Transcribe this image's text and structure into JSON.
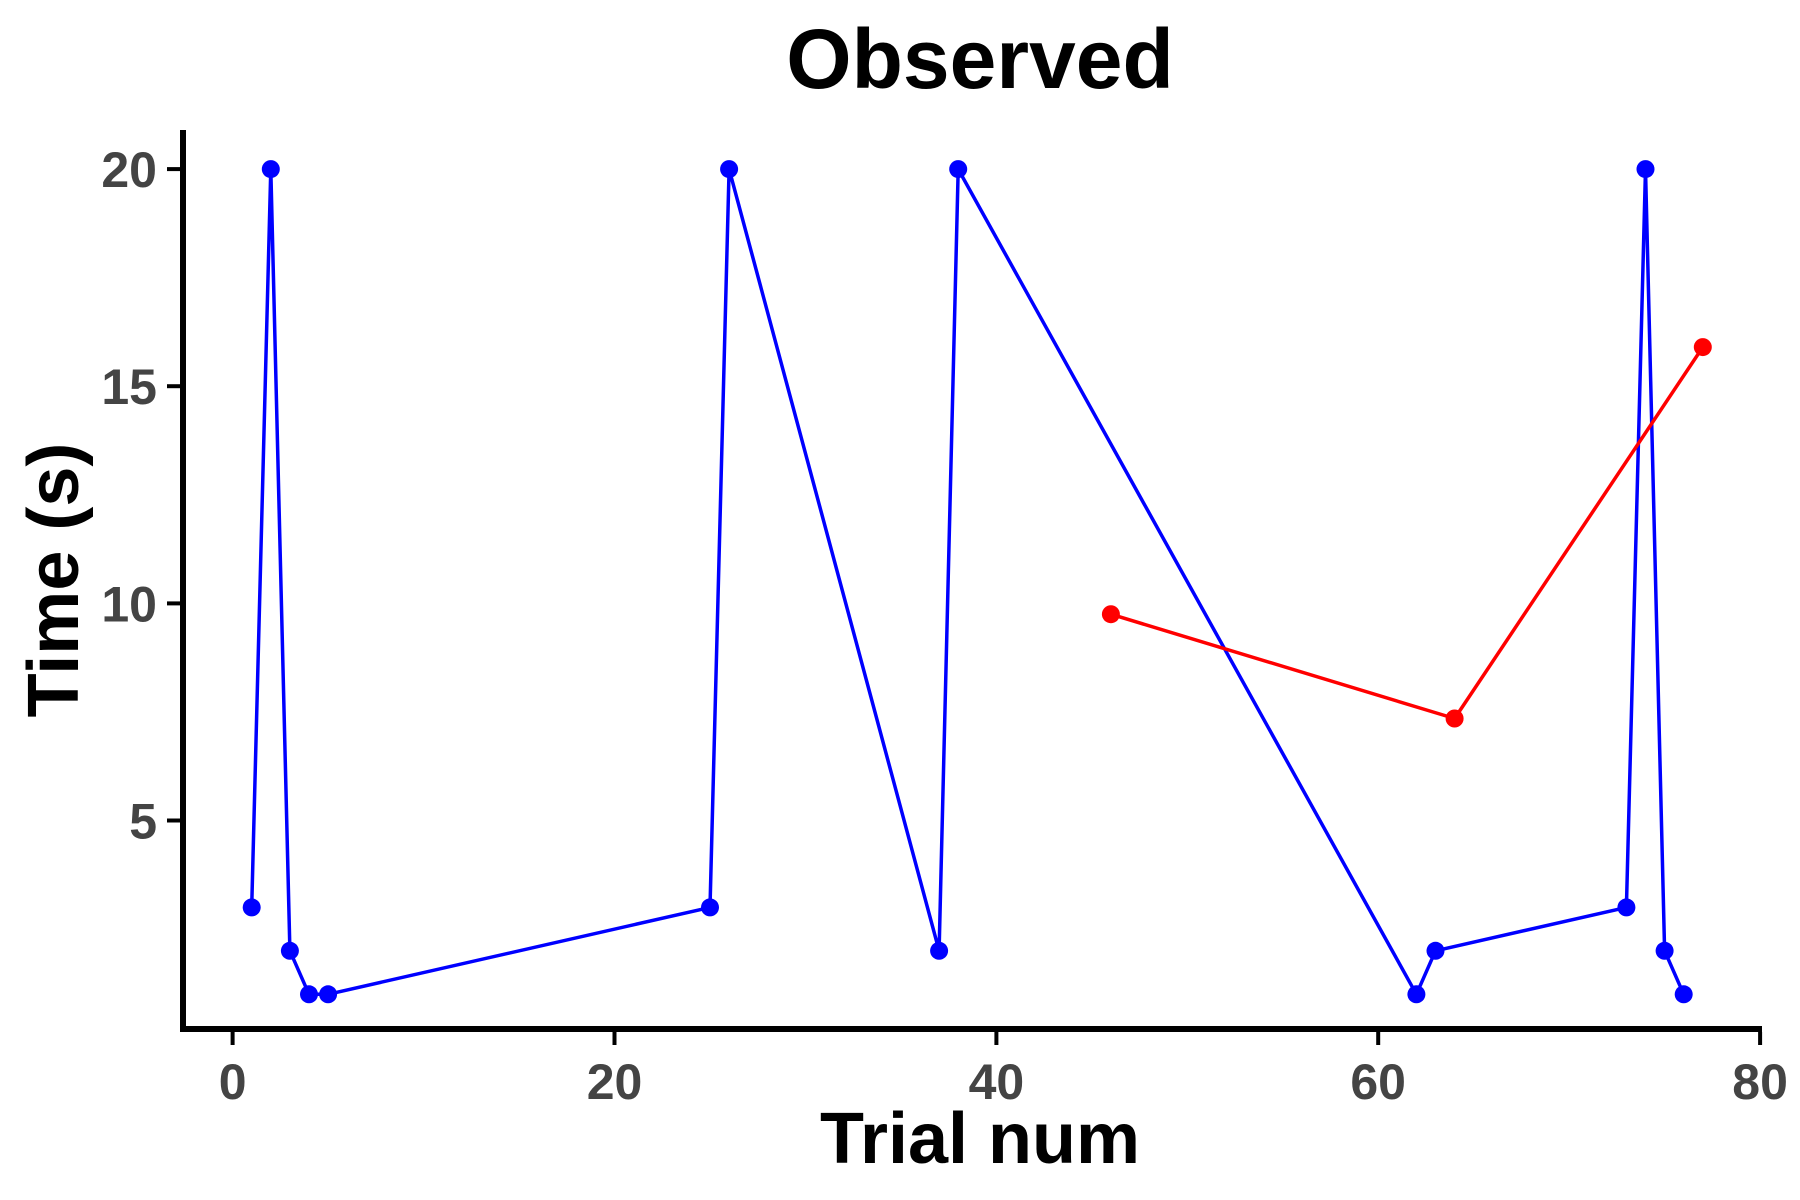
{
  "chart_data": {
    "type": "line",
    "title": "Observed",
    "xlabel": "Trial num",
    "ylabel": "Time (s)",
    "xlim": [
      -2.6,
      80.1
    ],
    "ylim": [
      0.2,
      20.9
    ],
    "x_ticks": [
      0,
      20,
      40,
      60,
      80
    ],
    "y_ticks": [
      5,
      10,
      15,
      20
    ],
    "grid": false,
    "legend": "none",
    "series": [
      {
        "color": "#0000ff",
        "x": [
          1,
          2,
          3,
          4,
          5,
          25,
          26,
          37,
          38,
          62,
          63,
          73,
          74,
          75,
          76
        ],
        "y": [
          3,
          20,
          2,
          1,
          1,
          3,
          20,
          2,
          20,
          1,
          2,
          3,
          20,
          2,
          1
        ]
      },
      {
        "color": "#ff0000",
        "x": [
          46,
          64,
          77
        ],
        "y": [
          9.75,
          7.35,
          15.9
        ]
      }
    ]
  }
}
